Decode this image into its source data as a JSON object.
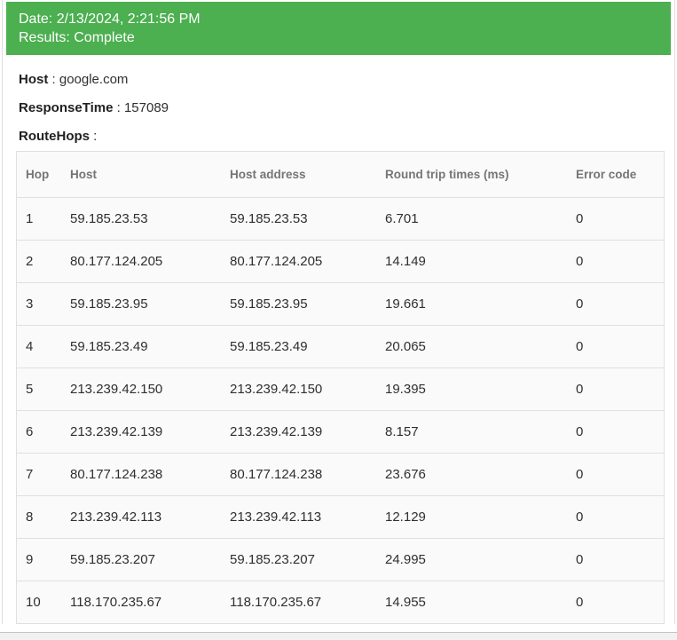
{
  "colors": {
    "banner_green": "#4caf50",
    "banner_text": "#ffffff",
    "table_header_text": "#757575",
    "body_text": "#2f2f2f",
    "table_border": "#e0e0e0",
    "table_background": "#fafafa"
  },
  "banner": {
    "date": "Date: 2/13/2024, 2:21:56 PM",
    "status": "Results: Complete"
  },
  "summary": {
    "host": {
      "label": "Host",
      "separator": " : ",
      "value": "google.com"
    },
    "response_time": {
      "label": "ResponseTime",
      "separator": " : ",
      "value": "157089"
    },
    "route_hops": {
      "label": "RouteHops",
      "separator": " :",
      "value": ""
    }
  },
  "table": {
    "columns": [
      "Hop",
      "Host",
      "Host address",
      "Round trip times (ms)",
      "Error code"
    ],
    "rows": [
      [
        "1",
        "59.185.23.53",
        "59.185.23.53",
        "6.701",
        "0"
      ],
      [
        "2",
        "80.177.124.205",
        "80.177.124.205",
        "14.149",
        "0"
      ],
      [
        "3",
        "59.185.23.95",
        "59.185.23.95",
        "19.661",
        "0"
      ],
      [
        "4",
        "59.185.23.49",
        "59.185.23.49",
        "20.065",
        "0"
      ],
      [
        "5",
        "213.239.42.150",
        "213.239.42.150",
        "19.395",
        "0"
      ],
      [
        "6",
        "213.239.42.139",
        "213.239.42.139",
        "8.157",
        "0"
      ],
      [
        "7",
        "80.177.124.238",
        "80.177.124.238",
        "23.676",
        "0"
      ],
      [
        "8",
        "213.239.42.113",
        "213.239.42.113",
        "12.129",
        "0"
      ],
      [
        "9",
        "59.185.23.207",
        "59.185.23.207",
        "24.995",
        "0"
      ],
      [
        "10",
        "118.170.235.67",
        "118.170.235.67",
        "14.955",
        "0"
      ]
    ]
  }
}
